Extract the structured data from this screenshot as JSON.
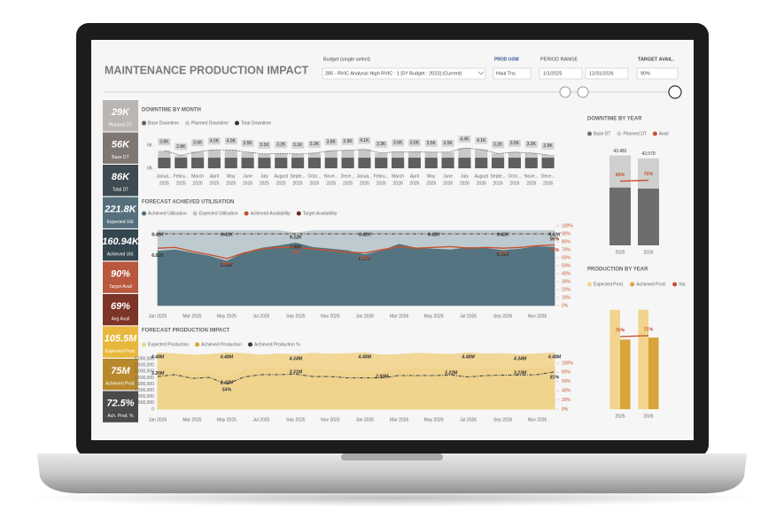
{
  "header": {
    "title": "MAINTENANCE PRODUCTION IMPACT"
  },
  "filters": {
    "budget_label": "Budget (single select)",
    "budget_value": "285 - RVIC Analysis High RVIC : 1 [5Y Budget : 2023] (Current)",
    "uom_label": "PROD UOM",
    "uom_value": "Haul Tns",
    "period_label": "PERIOD RANGE",
    "period_start": "1/1/2025",
    "period_end": "12/31/2026",
    "target_label": "TARGET AVAIL.",
    "target_value": "90%"
  },
  "kpis": [
    {
      "value": "29K",
      "label": "Planned DT",
      "color": "#b9b6b4"
    },
    {
      "value": "56K",
      "label": "Base DT",
      "color": "#7f7773"
    },
    {
      "value": "86K",
      "label": "Total DT",
      "color": "#3e4b52"
    },
    {
      "value": "221.8K",
      "label": "Expected Util.",
      "color": "#55707c"
    },
    {
      "value": "160.94K",
      "label": "Achieved Util.",
      "color": "#34464f"
    },
    {
      "value": "90%",
      "label": "Target Avail",
      "color": "#b9573f"
    },
    {
      "value": "69%",
      "label": "Avg Avail",
      "color": "#7c3426"
    },
    {
      "value": "105.5M",
      "label": "Expected Prod.",
      "color": "#e8b83e"
    },
    {
      "value": "75M",
      "label": "Achieved Prod.",
      "color": "#b8892c"
    },
    {
      "value": "72.5%",
      "label": "Ach. Prod. %",
      "color": "#4a4a4a"
    }
  ],
  "chart_data": [
    {
      "type": "bar",
      "stacked": true,
      "title": "DOWNTIME BY MONTH",
      "categories": [
        [
          "Janua...",
          "2025"
        ],
        [
          "Febru...",
          "2025"
        ],
        [
          "March",
          "2025"
        ],
        [
          "April",
          "2025"
        ],
        [
          "May",
          "2025"
        ],
        [
          "June",
          "2025"
        ],
        [
          "July",
          "2025"
        ],
        [
          "August",
          "2025"
        ],
        [
          "Septe...",
          "2025"
        ],
        [
          "Octo...",
          "2025"
        ],
        [
          "Nove...",
          "2025"
        ],
        [
          "Dece...",
          "2025"
        ],
        [
          "Janua...",
          "2026"
        ],
        [
          "Febru...",
          "2026"
        ],
        [
          "March",
          "2026"
        ],
        [
          "April",
          "2026"
        ],
        [
          "May",
          "2026"
        ],
        [
          "June",
          "2026"
        ],
        [
          "July",
          "2026"
        ],
        [
          "August",
          "2026"
        ],
        [
          "Septe...",
          "2026"
        ],
        [
          "Octo...",
          "2026"
        ],
        [
          "Nove...",
          "2026"
        ],
        [
          "Dece...",
          "2026"
        ]
      ],
      "series": [
        {
          "name": "Base Downtime",
          "color": "#5f5f5f",
          "values": [
            2300,
            2300,
            2300,
            2300,
            2300,
            2300,
            2300,
            2300,
            2300,
            2300,
            2300,
            2300,
            2300,
            2300,
            2300,
            2300,
            2300,
            2300,
            2300,
            2300,
            2300,
            2300,
            2300,
            2300
          ]
        },
        {
          "name": "Planned Downtime",
          "color": "#c8c8c8",
          "values": [
            1500,
            500,
            1300,
            1700,
            1700,
            1200,
            800,
            900,
            800,
            1000,
            1500,
            1600,
            1800,
            1000,
            1300,
            1300,
            1200,
            1200,
            2100,
            1800,
            900,
            1200,
            1000,
            600
          ]
        }
      ],
      "total": {
        "name": "Total Downtime",
        "color": "#333333",
        "values": [
          3800,
          2800,
          3600,
          4000,
          4000,
          3500,
          3100,
          3200,
          3100,
          3300,
          3800,
          3900,
          4100,
          3300,
          3600,
          3600,
          3500,
          3500,
          4400,
          4100,
          3200,
          3500,
          3300,
          2900
        ],
        "value_labels": [
          "3.8K",
          "2.8K",
          "3.6K",
          "4.0K",
          "4.0K",
          "3.5K",
          "3.1K",
          "3.2K",
          "3.1K",
          "3.3K",
          "3.8K",
          "3.9K",
          "4.1K",
          "3.3K",
          "3.6K",
          "3.6K",
          "3.5K",
          "3.5K",
          "4.4K",
          "4.1K",
          "3.2K",
          "3.5K",
          "3.3K",
          "2.9K"
        ]
      },
      "ylim": [
        0,
        5000
      ],
      "yticks": [
        {
          "value": 5000,
          "label": "5K"
        },
        {
          "value": 0,
          "label": "0K"
        }
      ]
    },
    {
      "type": "area",
      "title": "FORECAST ACHIEVED UTILISATION",
      "categories": [
        "Jan 2025",
        null,
        "Mar 2025",
        null,
        "May 2025",
        null,
        "Jul 2025",
        null,
        "Sep 2025",
        null,
        "Nov 2025",
        null,
        "Jan 2026",
        null,
        "Mar 2026",
        null,
        "May 2026",
        null,
        "Jul 2026",
        null,
        "Sep 2026",
        null,
        "Nov 2026",
        null
      ],
      "series": [
        {
          "name": "Achieved Utilisation",
          "color": "#4f6f7c",
          "kind": "area",
          "values": [
            6820,
            7000,
            6600,
            6200,
            5580,
            6600,
            7200,
            7500,
            7860,
            7300,
            7100,
            6900,
            6370,
            6900,
            7700,
            7200,
            7100,
            7000,
            7300,
            7200,
            6910,
            7100,
            7400,
            7300
          ],
          "value_labels": [
            "6.82K",
            null,
            null,
            null,
            "5.58K",
            null,
            null,
            null,
            "7.86K",
            null,
            null,
            null,
            "6.37K",
            null,
            null,
            null,
            null,
            null,
            null,
            null,
            "6.91K",
            null,
            null,
            null
          ]
        },
        {
          "name": "Expected Utilisation",
          "color": "#b9c8cd",
          "kind": "area",
          "values": [
            9420,
            9420,
            9420,
            9420,
            9420,
            9420,
            9420,
            9420,
            9120,
            9420,
            9420,
            9420,
            9420,
            9420,
            9420,
            9420,
            9420,
            9420,
            9420,
            9420,
            9420,
            9420,
            9420,
            9420
          ],
          "value_labels": [
            "9.42K",
            null,
            null,
            null,
            "9.42K",
            null,
            null,
            null,
            "9.12K",
            null,
            null,
            null,
            "9.42K",
            null,
            null,
            null,
            "9.42K",
            null,
            null,
            null,
            "9.42K",
            null,
            null,
            "9.42K"
          ]
        },
        {
          "name": "Achieved Availability",
          "color": "#c8532f",
          "kind": "line",
          "axis": "y2",
          "values": [
            72,
            73,
            68,
            64,
            59,
            66,
            71,
            73,
            73,
            71,
            69,
            67,
            66,
            70,
            74,
            72,
            73,
            74,
            72,
            73,
            72,
            73,
            75,
            76
          ],
          "value_labels": [
            null,
            null,
            null,
            null,
            "59%",
            null,
            null,
            null,
            "73%",
            null,
            null,
            null,
            "66%",
            null,
            null,
            null,
            null,
            null,
            null,
            null,
            "72%",
            null,
            null,
            "76%"
          ]
        },
        {
          "name": "Target Availability",
          "color": "#6b2f25",
          "kind": "line",
          "dash": true,
          "axis": "y2",
          "values": [
            90,
            90,
            90,
            90,
            90,
            90,
            90,
            90,
            90,
            90,
            90,
            90,
            90,
            90,
            90,
            90,
            90,
            90,
            90,
            90,
            90,
            90,
            90,
            90
          ],
          "value_labels": [
            null,
            null,
            null,
            null,
            null,
            null,
            null,
            null,
            null,
            null,
            null,
            null,
            null,
            null,
            null,
            null,
            null,
            null,
            null,
            null,
            null,
            null,
            null,
            "90%"
          ]
        }
      ],
      "ylim": [
        0,
        10000
      ],
      "y2lim": [
        0,
        100
      ],
      "y2ticks": [
        {
          "value": 0,
          "label": "0%"
        },
        {
          "value": 10,
          "label": "10%"
        },
        {
          "value": 20,
          "label": "20%"
        },
        {
          "value": 30,
          "label": "30%"
        },
        {
          "value": 40,
          "label": "40%"
        },
        {
          "value": 50,
          "label": "50%"
        },
        {
          "value": 60,
          "label": "60%"
        },
        {
          "value": 70,
          "label": "70%"
        },
        {
          "value": 80,
          "label": "80%"
        },
        {
          "value": 90,
          "label": "90%"
        },
        {
          "value": 100,
          "label": "100%"
        }
      ]
    },
    {
      "type": "area",
      "title": "FORECAST PRODUCTION IMPACT",
      "categories": [
        "Jan 2025",
        null,
        "Mar 2025",
        null,
        "May 2025",
        null,
        "Jul 2025",
        null,
        "Sep 2025",
        null,
        "Nov 2025",
        null,
        "Jan 2026",
        null,
        "Mar 2026",
        null,
        "May 2026",
        null,
        "Jul 2026",
        null,
        "Sep 2026",
        null,
        "Nov 2026",
        null
      ],
      "series": [
        {
          "name": "Expected Production",
          "color": "#f1d591",
          "kind": "area",
          "values": [
            4480000,
            4400000,
            4300000,
            4350000,
            4480000,
            4420000,
            4300000,
            4400000,
            4340000,
            4450000,
            4380000,
            4420000,
            4480000,
            4300000,
            4360000,
            4450000,
            4400000,
            4350000,
            4480000,
            4400000,
            4420000,
            4340000,
            4400000,
            4480000
          ],
          "value_labels": [
            "4.48M",
            null,
            null,
            null,
            "4.48M",
            null,
            null,
            null,
            "4.34M",
            null,
            null,
            null,
            "4.48M",
            null,
            null,
            null,
            null,
            null,
            "4.48M",
            null,
            null,
            "4.34M",
            null,
            "4.48M"
          ]
        },
        {
          "name": "Achieved Production",
          "color": "#d9a43a",
          "kind": "area",
          "values": [
            3200000,
            3300000,
            2900000,
            3000000,
            2440000,
            3100000,
            3250000,
            3300000,
            3310000,
            3150000,
            3100000,
            3000000,
            3050000,
            2930000,
            3200000,
            3250000,
            3200000,
            3220000,
            3150000,
            3200000,
            3250000,
            3230000,
            3300000,
            3400000
          ],
          "value_labels": [
            "3.20M",
            null,
            null,
            null,
            "2.44M",
            null,
            null,
            null,
            "3.31M",
            null,
            null,
            null,
            null,
            "2.93M",
            null,
            null,
            null,
            "3.22M",
            null,
            null,
            null,
            "3.23M",
            null,
            null
          ]
        },
        {
          "name": "Achieved Production %",
          "color": "#2f3e46",
          "kind": "line",
          "dash": true,
          "axis": "y2",
          "values": [
            71,
            75,
            67,
            69,
            54,
            70,
            75,
            75,
            76,
            71,
            71,
            68,
            68,
            68,
            73,
            73,
            73,
            74,
            70,
            73,
            74,
            74,
            75,
            81
          ],
          "value_labels": [
            null,
            null,
            null,
            null,
            "54%",
            null,
            null,
            null,
            null,
            null,
            null,
            null,
            null,
            null,
            null,
            null,
            null,
            null,
            null,
            null,
            null,
            null,
            null,
            "81%"
          ]
        }
      ],
      "ylim": [
        0,
        4500000
      ],
      "yticks": [
        {
          "value": 0,
          "label": "0"
        },
        {
          "value": 500000,
          "label": "500,000"
        },
        {
          "value": 1000000,
          "label": "1,000,000"
        },
        {
          "value": 1500000,
          "label": "1,500,000"
        },
        {
          "value": 2000000,
          "label": "2,000,000"
        },
        {
          "value": 2500000,
          "label": "2,500,000"
        },
        {
          "value": 3000000,
          "label": "3,000,000"
        },
        {
          "value": 3500000,
          "label": "3,500,000"
        },
        {
          "value": 4000000,
          "label": "4,000,000"
        }
      ],
      "y2lim": [
        0,
        100
      ],
      "y2ticks": [
        {
          "value": 0,
          "label": "0%"
        },
        {
          "value": 20,
          "label": "20%"
        },
        {
          "value": 40,
          "label": "40%"
        },
        {
          "value": 60,
          "label": "60%"
        },
        {
          "value": 80,
          "label": "80%"
        },
        {
          "value": 100,
          "label": "100%"
        }
      ]
    },
    {
      "type": "bar",
      "stacked": true,
      "title": "DOWNTIME BY YEAR",
      "categories": [
        "2025",
        "2026"
      ],
      "series": [
        {
          "name": "Base DT",
          "color": "#6d6d6d",
          "values": [
            28000,
            27500
          ]
        },
        {
          "name": "Planned DT",
          "color": "#cfcfcf",
          "values": [
            15481,
            14579
          ]
        },
        {
          "name": "Avail",
          "color": "#c8532f",
          "axis": "y2",
          "values": [
            69,
            70
          ],
          "value_labels": [
            "69%",
            "70%"
          ]
        }
      ],
      "total": {
        "values": [
          43481,
          42079
        ],
        "value_labels": [
          "43,481",
          "42,079"
        ]
      },
      "ylim": [
        0,
        45000
      ],
      "y2lim": [
        0,
        100
      ]
    },
    {
      "type": "bar",
      "stacked": false,
      "title": "PRODUCTION BY YEAR",
      "categories": [
        "2025",
        "2026"
      ],
      "series": [
        {
          "name": "Expected Prod.",
          "color": "#f2d48c",
          "values": [
            52750000,
            52750000
          ]
        },
        {
          "name": "Achieved Prod.",
          "color": "#d9a43a",
          "values": [
            37000000,
            38000000
          ]
        },
        {
          "name": "Var.",
          "color": "#c8532f",
          "axis": "y2",
          "values": [
            70,
            71
          ],
          "value_labels": [
            "70%",
            "71%"
          ]
        }
      ],
      "ylim": [
        0,
        55000000
      ],
      "y2lim": [
        0,
        100
      ]
    }
  ]
}
